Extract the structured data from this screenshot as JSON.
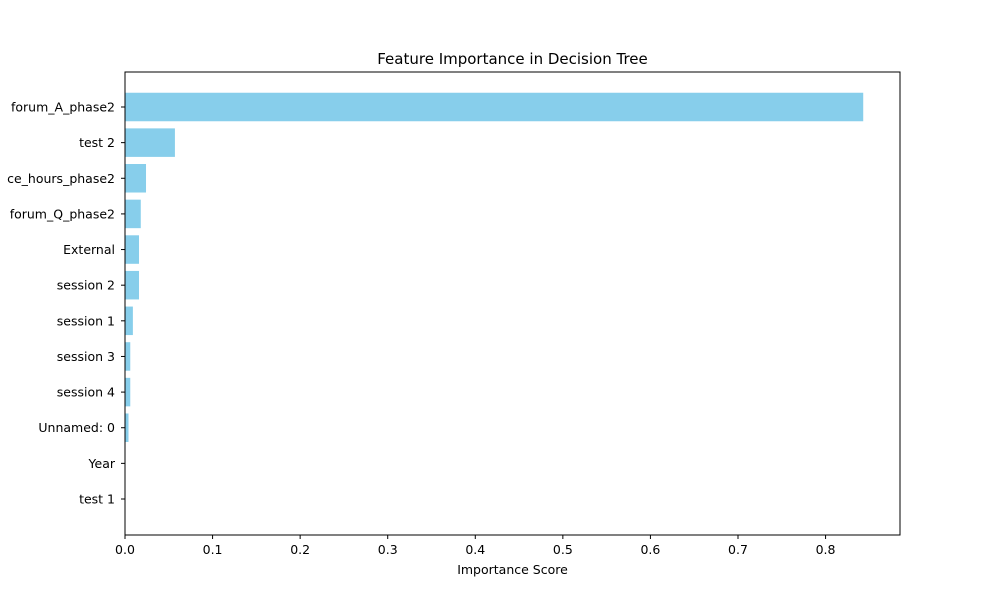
{
  "chart_data": {
    "type": "bar",
    "orientation": "horizontal",
    "title": "Feature Importance in Decision Tree",
    "xlabel": "Importance Score",
    "ylabel": "",
    "categories": [
      "forum_A_phase2",
      "test 2",
      "ce_hours_phase2",
      "forum_Q_phase2",
      "External",
      "session 2",
      "session 1",
      "session 3",
      "session 4",
      "Unnamed: 0",
      "Year",
      "test 1"
    ],
    "values": [
      0.843,
      0.057,
      0.024,
      0.018,
      0.016,
      0.016,
      0.009,
      0.006,
      0.006,
      0.004,
      0.0,
      0.0
    ],
    "xlim": [
      0,
      0.885
    ],
    "xticks": [
      0.0,
      0.1,
      0.2,
      0.3,
      0.4,
      0.5,
      0.6,
      0.7,
      0.8
    ],
    "xtick_labels": [
      "0.0",
      "0.1",
      "0.2",
      "0.3",
      "0.4",
      "0.5",
      "0.6",
      "0.7",
      "0.8"
    ],
    "bar_color": "#87ceeb",
    "grid": false,
    "legend": "none"
  }
}
